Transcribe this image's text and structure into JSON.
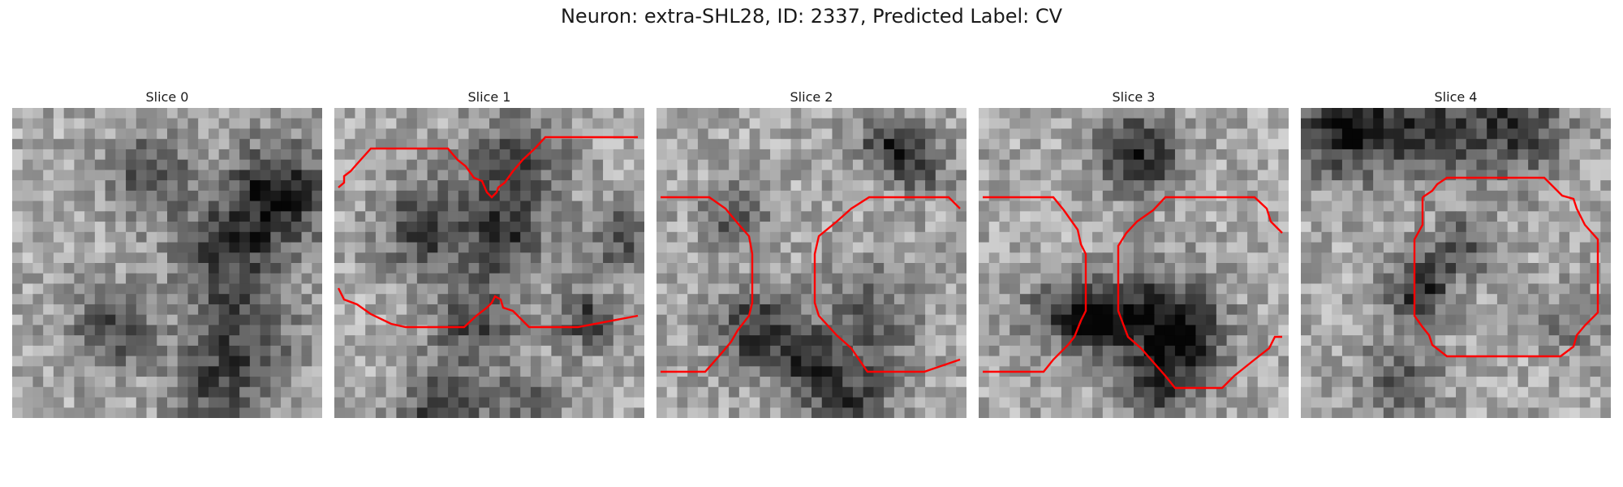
{
  "figure": {
    "title": "Neuron: extra-SHL28, ID: 2337, Predicted Label: CV"
  },
  "panels": [
    {
      "title": "Slice 0"
    },
    {
      "title": "Slice 1"
    },
    {
      "title": "Slice 2"
    },
    {
      "title": "Slice 3"
    },
    {
      "title": "Slice 4"
    }
  ],
  "colors": {
    "contour": "#ff0000",
    "background": "#ffffff",
    "text": "#1a1a1a"
  }
}
